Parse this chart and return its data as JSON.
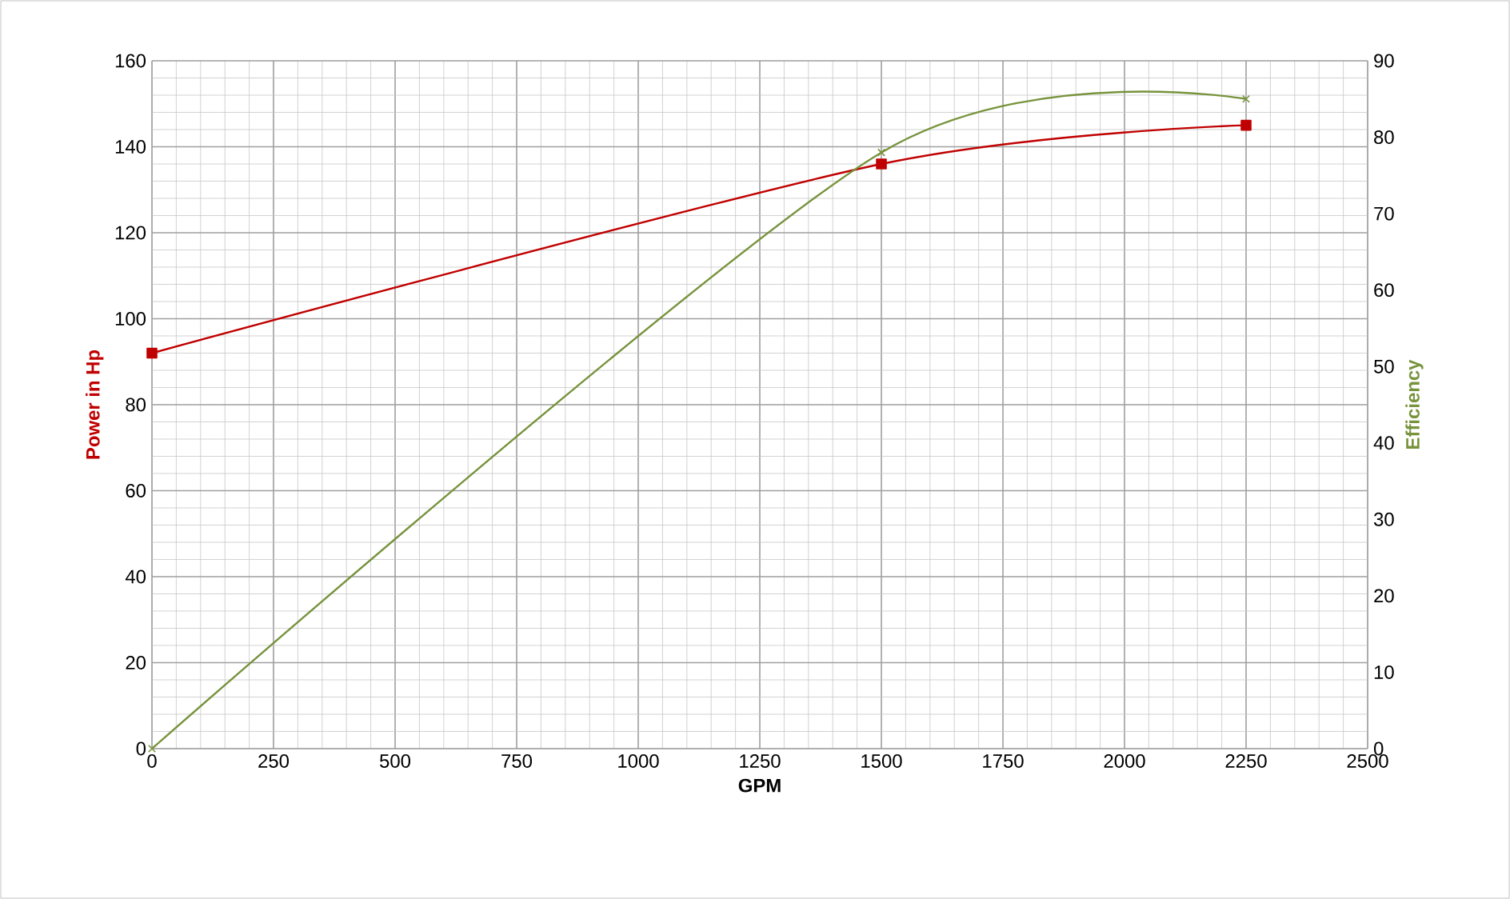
{
  "chart_data": {
    "type": "line",
    "xlabel": "GPM",
    "ylabel": "Power in Hp",
    "y2label": "Efficiency",
    "x": [
      0,
      1500,
      2250
    ],
    "series": [
      {
        "color": "#c00000",
        "values": [
          92,
          136,
          145
        ],
        "marker": "square"
      },
      {
        "color": "#77933c",
        "values": [
          0,
          78,
          85
        ],
        "marker": "cross",
        "axis": "y2"
      }
    ],
    "xlim": [
      0,
      2500
    ],
    "xticks": [
      0,
      250,
      500,
      750,
      1000,
      1250,
      1500,
      1750,
      2000,
      2250,
      2500
    ],
    "ylim": [
      0,
      160
    ],
    "yticks": [
      0,
      20,
      40,
      60,
      80,
      100,
      120,
      140,
      160
    ],
    "y2lim": [
      0,
      90
    ],
    "y2ticks": [
      0,
      10,
      20,
      30,
      40,
      50,
      60,
      70,
      80,
      90
    ],
    "grid": true,
    "line_style": "solid"
  }
}
